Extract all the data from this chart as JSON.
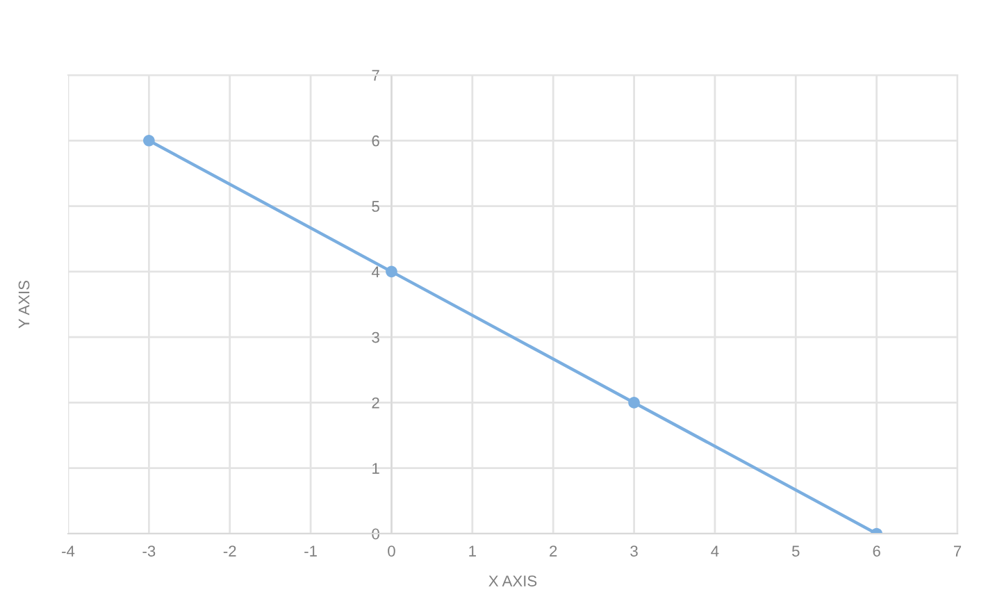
{
  "chart_data": {
    "type": "line",
    "xlabel": "X AXIS",
    "ylabel": "Y AXIS",
    "x": [
      -3,
      0,
      3,
      6
    ],
    "series": [
      {
        "color": "#7aaee0",
        "values": [
          6,
          4,
          2,
          0
        ]
      }
    ],
    "xlim": [
      -4,
      7
    ],
    "xticks": [
      -4,
      -3,
      -2,
      -1,
      0,
      1,
      2,
      3,
      4,
      5,
      6,
      7
    ],
    "ylim": [
      0,
      7
    ],
    "yticks": [
      0,
      1,
      2,
      3,
      4,
      5,
      6,
      7
    ],
    "grid": true,
    "marker": "circle",
    "line_style": "solid"
  }
}
